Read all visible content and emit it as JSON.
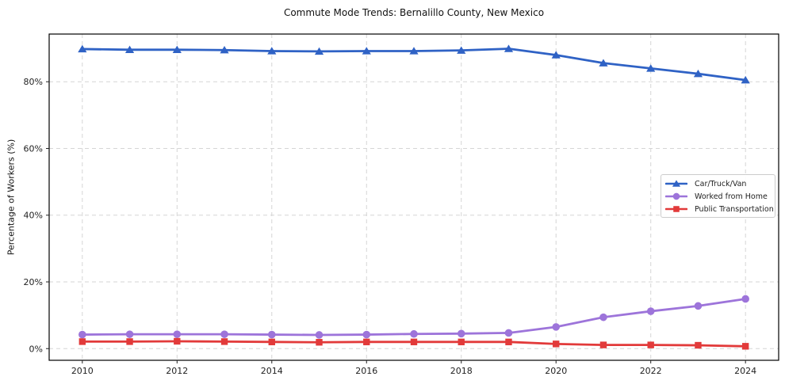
{
  "figure": {
    "background": "#ffffff",
    "title": "Commute Mode Trends: Bernalillo County, New Mexico"
  },
  "chart_data": {
    "type": "line",
    "title": "Commute Mode Trends: Bernalillo County, New Mexico",
    "xlabel": "",
    "ylabel": "Percentage of Workers (%)",
    "x": [
      2010,
      2011,
      2012,
      2013,
      2014,
      2015,
      2016,
      2017,
      2018,
      2019,
      2020,
      2021,
      2022,
      2023,
      2024
    ],
    "series": [
      {
        "name": "Car/Truck/Van",
        "color": "#2f62c5",
        "marker": "triangle",
        "values": [
          89.8,
          89.6,
          89.6,
          89.5,
          89.2,
          89.1,
          89.2,
          89.2,
          89.4,
          89.9,
          88.0,
          85.6,
          84.0,
          82.4,
          80.5
        ]
      },
      {
        "name": "Worked from Home",
        "color": "#9d74da",
        "marker": "circle",
        "values": [
          4.2,
          4.3,
          4.3,
          4.3,
          4.2,
          4.1,
          4.2,
          4.4,
          4.5,
          4.7,
          6.5,
          9.4,
          11.2,
          12.8,
          14.9
        ]
      },
      {
        "name": "Public Transportation",
        "color": "#e23a3a",
        "marker": "square",
        "values": [
          2.1,
          2.1,
          2.2,
          2.1,
          2.0,
          1.9,
          2.0,
          2.0,
          2.0,
          2.0,
          1.4,
          1.1,
          1.1,
          1.0,
          0.7
        ]
      }
    ],
    "xticks": [
      2010,
      2012,
      2014,
      2016,
      2018,
      2020,
      2022,
      2024
    ],
    "xtick_labels": [
      "2010",
      "2012",
      "2014",
      "2016",
      "2018",
      "2020",
      "2022",
      "2024"
    ],
    "yticks": [
      0,
      20,
      40,
      60,
      80
    ],
    "ytick_labels": [
      "0%",
      "20%",
      "40%",
      "60%",
      "80%"
    ],
    "xlim": [
      2009.3,
      2024.7
    ],
    "ylim": [
      -3.5,
      94.3
    ],
    "grid": true,
    "grid_style": "dashed",
    "grid_color": "#d5d5d5",
    "spine_color": "#000000",
    "tick_color": "#222222",
    "legend_position": "center right",
    "legend_labels": [
      "Car/Truck/Van",
      "Worked from Home",
      "Public Transportation"
    ]
  }
}
